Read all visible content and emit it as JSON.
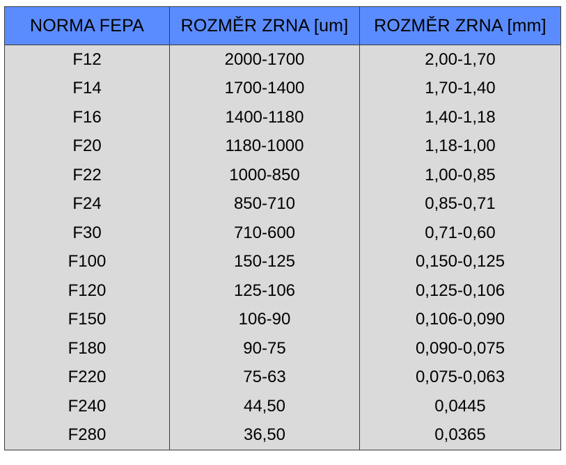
{
  "table": {
    "headers": [
      "NORMA FEPA",
      "ROZMĚR ZRNA [um]",
      "ROZMĚR ZRNA [mm]"
    ],
    "rows": [
      [
        "F12",
        "2000-1700",
        "2,00-1,70"
      ],
      [
        "F14",
        "1700-1400",
        "1,70-1,40"
      ],
      [
        "F16",
        "1400-1180",
        "1,40-1,18"
      ],
      [
        "F20",
        "1180-1000",
        "1,18-1,00"
      ],
      [
        "F22",
        "1000-850",
        "1,00-0,85"
      ],
      [
        "F24",
        "850-710",
        "0,85-0,71"
      ],
      [
        "F30",
        "710-600",
        "0,71-0,60"
      ],
      [
        "F100",
        "150-125",
        "0,150-0,125"
      ],
      [
        "F120",
        "125-106",
        "0,125-0,106"
      ],
      [
        "F150",
        "106-90",
        "0,106-0,090"
      ],
      [
        "F180",
        "90-75",
        "0,090-0,075"
      ],
      [
        "F220",
        "75-63",
        "0,075-0,063"
      ],
      [
        "F240",
        "44,50",
        "0,0445"
      ],
      [
        "F280",
        "36,50",
        "0,0365"
      ]
    ]
  },
  "colors": {
    "header_background": "#5b8cff",
    "body_background": "#dadada",
    "border": "#3a3a3a"
  }
}
